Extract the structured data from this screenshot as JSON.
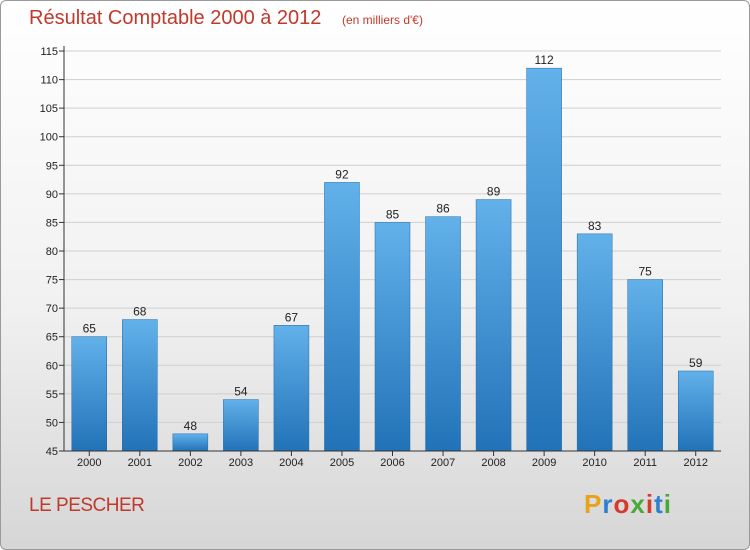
{
  "header": {
    "title": "Résultat Comptable 2000 à 2012",
    "subtitle": "(en milliers d'€)"
  },
  "footer": {
    "location": "LE PESCHER",
    "logo_text": "Proxiti",
    "logo_colors": [
      "#e8a21b",
      "#2f7fd1",
      "#d63a2b",
      "#4aa83a",
      "#d63a2b",
      "#2f7fd1",
      "#4aa83a"
    ]
  },
  "colors": {
    "bar_top": "#62b1ea",
    "bar_bottom": "#2272b8",
    "grid": "#cfcfcf",
    "axis": "#333333",
    "text_accent": "#c0392b"
  },
  "chart_data": {
    "type": "bar",
    "title": "Résultat Comptable 2000 à 2012",
    "subtitle": "(en milliers d'€)",
    "xlabel": "",
    "ylabel": "",
    "categories": [
      "2000",
      "2001",
      "2002",
      "2003",
      "2004",
      "2005",
      "2006",
      "2007",
      "2008",
      "2009",
      "2010",
      "2011",
      "2012"
    ],
    "values": [
      65,
      68,
      48,
      54,
      67,
      92,
      85,
      86,
      89,
      112,
      83,
      75,
      59
    ],
    "ylim": [
      45,
      115
    ],
    "yticks": [
      45,
      50,
      55,
      60,
      65,
      70,
      75,
      80,
      85,
      90,
      95,
      100,
      105,
      110,
      115
    ],
    "grid": true,
    "legend": "none",
    "data_labels": true
  }
}
